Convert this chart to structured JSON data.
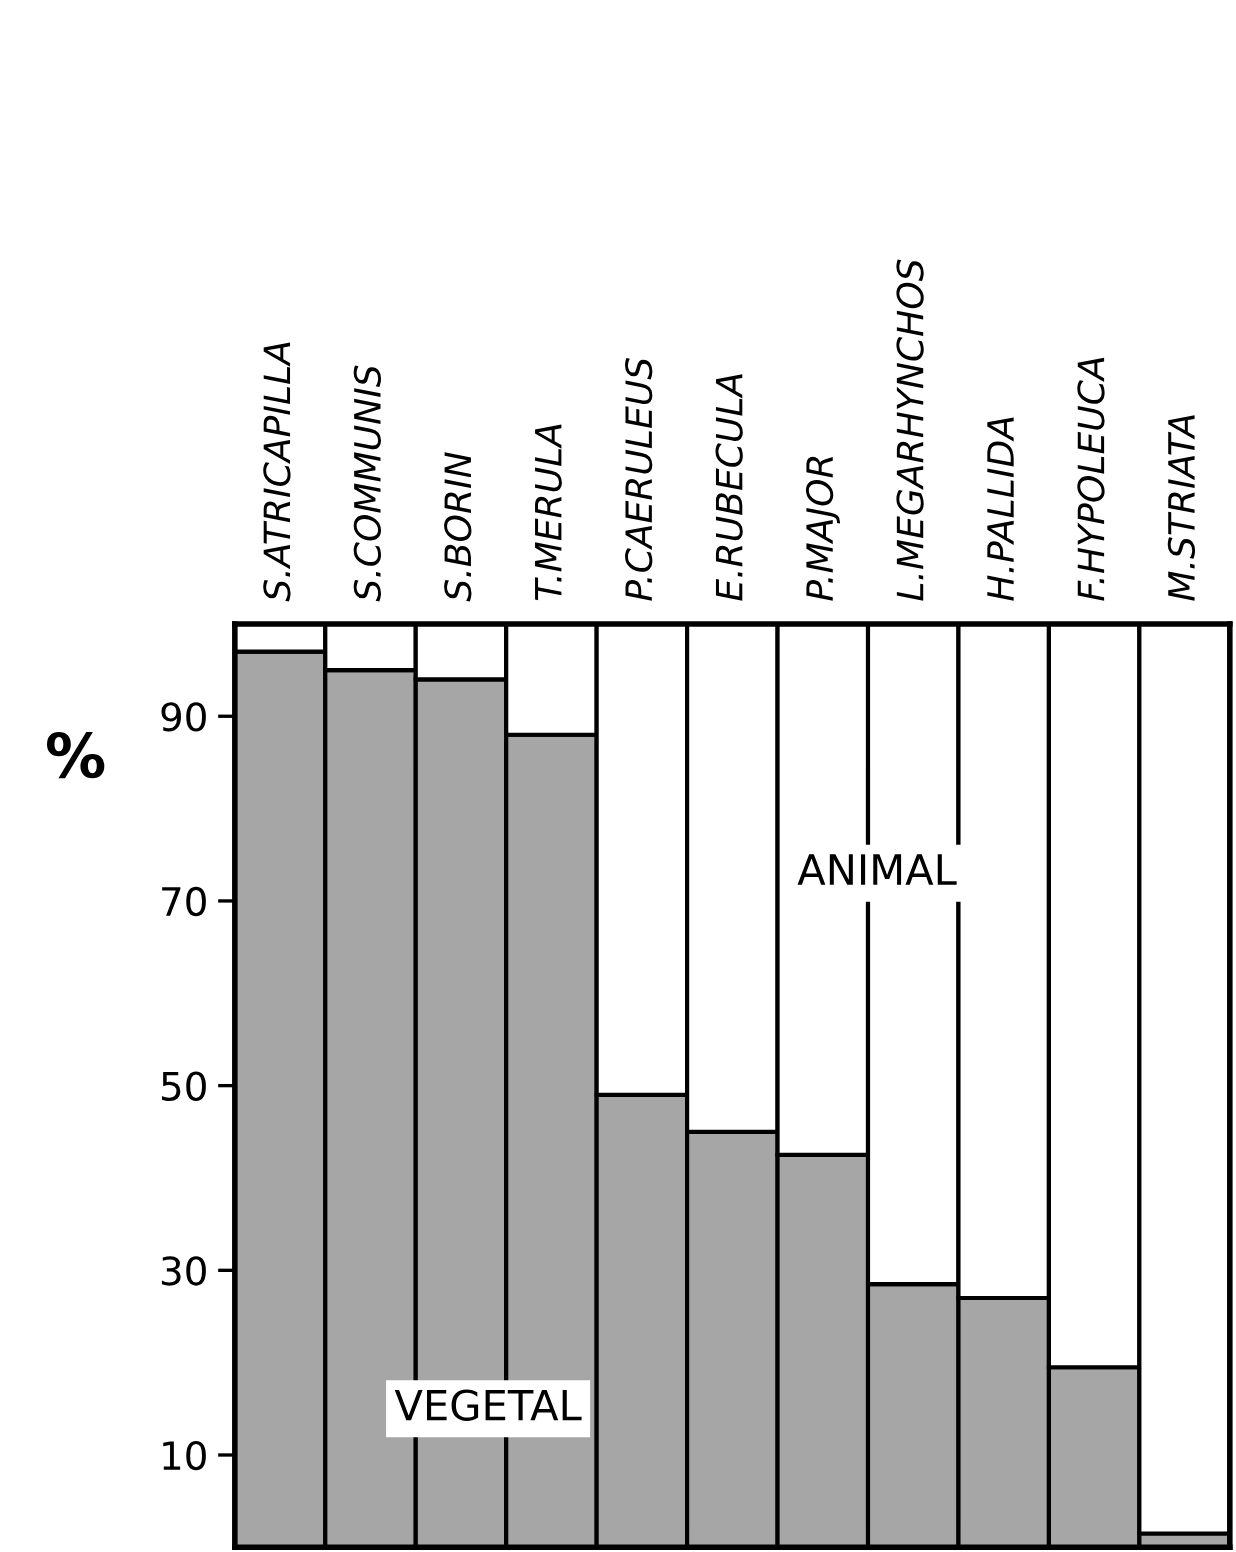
{
  "chart_data": {
    "type": "bar",
    "stacked": true,
    "ylabel": "%",
    "categories": [
      "S.ATRICAPILLA",
      "S.COMMUNIS",
      "S.BORIN",
      "T.MERULA",
      "P.CAERULEUS",
      "E.RUBECULA",
      "P.MAJOR",
      "L.MEGARHYNCHOS",
      "H.PALLIDA",
      "F.HYPOLEUCA",
      "M.STRIATA"
    ],
    "series": [
      {
        "name": "VEGETAL",
        "color": "#a6a6a6",
        "values": [
          97,
          95,
          94,
          88,
          49,
          45,
          42.5,
          28.5,
          27,
          19.5,
          1.5
        ]
      },
      {
        "name": "ANIMAL",
        "color": "#ffffff",
        "values": [
          3,
          5,
          6,
          12,
          51,
          55,
          57.5,
          71.5,
          73,
          80.5,
          98.5
        ]
      }
    ],
    "ylim": [
      0,
      100
    ],
    "yticks": [
      10,
      30,
      50,
      70,
      90
    ],
    "grid": false,
    "legend": false
  }
}
